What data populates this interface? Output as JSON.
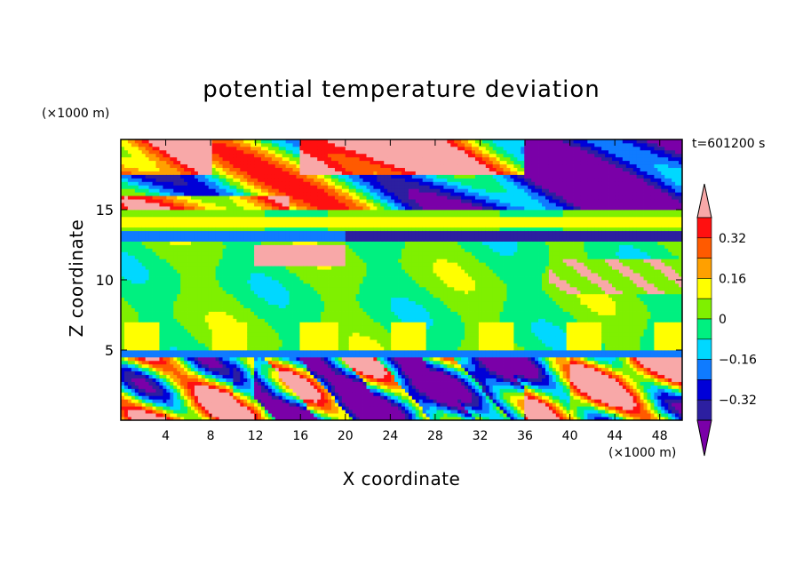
{
  "chart_data": {
    "type": "heatmap",
    "title": "potential temperature deviation",
    "xlabel": "X coordinate",
    "ylabel": "Z coordinate",
    "x_unit": "(×1000 m)",
    "y_unit": "(×1000 m)",
    "time_label": "t=601200 s",
    "xlim": [
      0,
      50
    ],
    "ylim": [
      0,
      20
    ],
    "x_ticks": [
      4,
      8,
      12,
      16,
      20,
      24,
      28,
      32,
      36,
      40,
      44,
      48
    ],
    "y_ticks": [
      5,
      10,
      15
    ],
    "colorbar": {
      "levels": [
        -0.48,
        -0.4,
        -0.32,
        -0.24,
        -0.16,
        -0.08,
        0,
        0.08,
        0.16,
        0.24,
        0.32,
        0.4
      ],
      "labels": [
        "0.32",
        "0.16",
        "0",
        "−0.16",
        "−0.32"
      ],
      "label_values": [
        0.32,
        0.16,
        0,
        -0.16,
        -0.32
      ],
      "colors": [
        "#7a00a8",
        "#2c1fa0",
        "#0000d8",
        "#0f7bff",
        "#00d8ff",
        "#00f080",
        "#7ff000",
        "#ffff00",
        "#ffa000",
        "#ff5a00",
        "#ff1010",
        "#f8a8a8"
      ]
    },
    "field_description_bands": [
      {
        "z_range": [
          15,
          20
        ],
        "dominant": "mixed ≥0.40 and ≤−0.40"
      },
      {
        "z_range": [
          13,
          15
        ],
        "dominant": "-0.08 to 0.08 with ≤−0.32 band near 13"
      },
      {
        "z_range": [
          5,
          13
        ],
        "dominant": "-0.08 to 0.08"
      },
      {
        "z_range": [
          0,
          5
        ],
        "dominant": "turbulent mixed −0.40 to 0.40"
      }
    ]
  }
}
